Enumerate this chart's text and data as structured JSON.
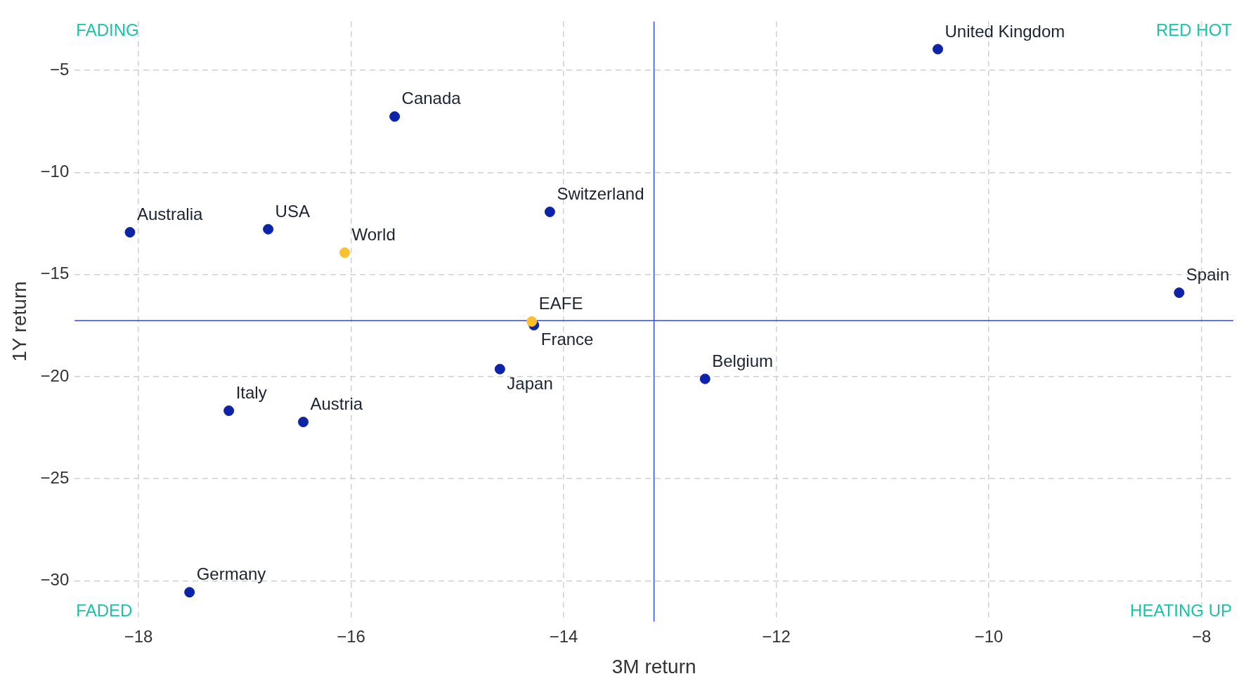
{
  "chart_data": {
    "type": "scatter",
    "xlabel": "3M return",
    "ylabel": "1Y return",
    "xlim": [
      -18.6,
      -7.7
    ],
    "ylim": [
      -32,
      -2.6
    ],
    "xticks": [
      -18,
      -16,
      -14,
      -12,
      -10,
      -8
    ],
    "yticks": [
      -30,
      -25,
      -20,
      -15,
      -10,
      -5
    ],
    "grid": true,
    "marker": "circle",
    "series": [
      {
        "name": "United Kingdom",
        "color": "#0d24a8",
        "x": [
          -10.48
        ],
        "values": [
          -3.96
        ]
      },
      {
        "name": "Canada",
        "color": "#0d24a8",
        "x": [
          -15.59
        ],
        "values": [
          -7.26
        ]
      },
      {
        "name": "Switzerland",
        "color": "#0d24a8",
        "x": [
          -14.13
        ],
        "values": [
          -11.93
        ]
      },
      {
        "name": "Australia",
        "color": "#0d24a8",
        "x": [
          -18.08
        ],
        "values": [
          -12.93
        ]
      },
      {
        "name": "USA",
        "color": "#0d24a8",
        "x": [
          -16.78
        ],
        "values": [
          -12.78
        ]
      },
      {
        "name": "World",
        "color": "#fbc02d",
        "x": [
          -16.06
        ],
        "values": [
          -13.93
        ]
      },
      {
        "name": "Spain",
        "color": "#0d24a8",
        "x": [
          -8.21
        ],
        "values": [
          -15.89
        ]
      },
      {
        "name": "EAFE",
        "color": "#fbc02d",
        "x": [
          -14.3
        ],
        "values": [
          -17.3
        ]
      },
      {
        "name": "France",
        "color": "#0d24a8",
        "x": [
          -14.28
        ],
        "values": [
          -17.48
        ]
      },
      {
        "name": "Japan",
        "color": "#0d24a8",
        "x": [
          -14.6
        ],
        "values": [
          -19.63
        ]
      },
      {
        "name": "Belgium",
        "color": "#0d24a8",
        "x": [
          -12.67
        ],
        "values": [
          -20.11
        ]
      },
      {
        "name": "Italy",
        "color": "#0d24a8",
        "x": [
          -17.15
        ],
        "values": [
          -21.67
        ]
      },
      {
        "name": "Austria",
        "color": "#0d24a8",
        "x": [
          -16.45
        ],
        "values": [
          -22.22
        ]
      },
      {
        "name": "Germany",
        "color": "#0d24a8",
        "x": [
          -17.52
        ],
        "values": [
          -30.56
        ]
      }
    ],
    "ref_lines": [
      {
        "axis": "x",
        "value": -13.15,
        "color": "#3b4cc8"
      },
      {
        "axis": "y",
        "value": -17.26,
        "color": "#3b4cc8"
      }
    ],
    "annotations": [
      "FADING",
      "RED HOT",
      "FADED",
      "HEATING UP"
    ]
  }
}
